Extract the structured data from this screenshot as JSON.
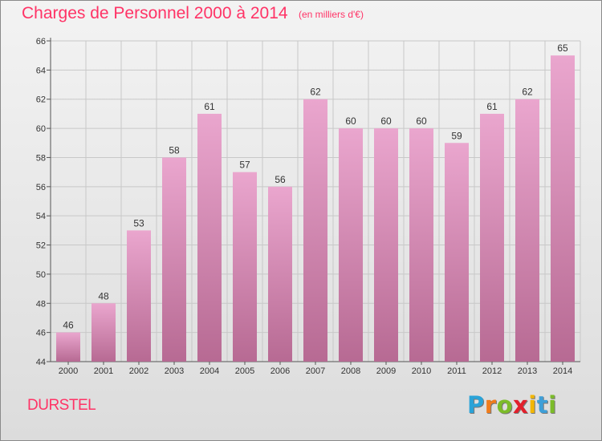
{
  "chart_data": {
    "type": "bar",
    "title": "Charges de Personnel 2000 à 2014",
    "subtitle": "(en milliers d'€)",
    "categories": [
      "2000",
      "2001",
      "2002",
      "2003",
      "2004",
      "2005",
      "2006",
      "2007",
      "2008",
      "2009",
      "2010",
      "2011",
      "2012",
      "2013",
      "2014"
    ],
    "values": [
      46,
      48,
      53,
      58,
      61,
      57,
      56,
      62,
      60,
      60,
      60,
      59,
      61,
      62,
      65
    ],
    "ylim": [
      44,
      66
    ],
    "yticks": [
      44,
      46,
      48,
      50,
      52,
      54,
      56,
      58,
      60,
      62,
      64,
      66
    ],
    "grid": true,
    "xlabel": "",
    "ylabel": ""
  },
  "location": "DURSTEL",
  "logo": {
    "letters": [
      "P",
      "r",
      "o",
      "x",
      "i",
      "t",
      "i"
    ],
    "colors": [
      "#2aa3d8",
      "#f07c1c",
      "#7cbc29",
      "#e2202c",
      "#f2b705",
      "#3e9fd8",
      "#7cbc29"
    ]
  },
  "colors": {
    "title": "#ff3366",
    "bar_top": "#eaa6ce",
    "bar_bottom": "#b76a93",
    "grid": "#c8c8c8"
  }
}
